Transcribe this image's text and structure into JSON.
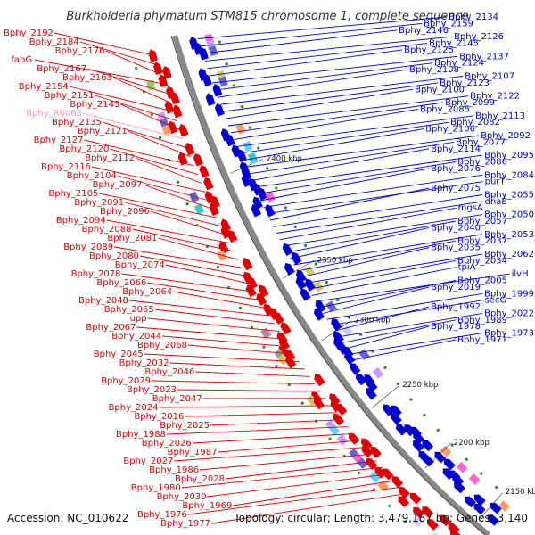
{
  "title": "Burkholderia phymatum STM815 chromosome 1, complete sequence",
  "footer": {
    "accession": "Accession: NC_010622",
    "summary": "Topology: circular; Length: 3,479,187 bp; Genes: 3,140"
  },
  "colors": {
    "forward": "#dd0000",
    "reverse": "#0000cc",
    "rna": "#ff99cc",
    "backbone": "#888888",
    "tick": "#228b22"
  },
  "kbp_marks": [
    "2400 kbp",
    "2350 kbp",
    "2300 kbp",
    "2250 kbp",
    "2200 kbp",
    "2150 kbp"
  ],
  "left_labels": [
    {
      "text": "Bphy_2192",
      "type": "forward"
    },
    {
      "text": "Bphy_2184",
      "type": "forward"
    },
    {
      "text": "Bphy_2176",
      "type": "forward"
    },
    {
      "text": "fabG",
      "type": "forward"
    },
    {
      "text": "Bphy_2167",
      "type": "forward"
    },
    {
      "text": "Bphy_2163",
      "type": "forward"
    },
    {
      "text": "Bphy_2154",
      "type": "forward"
    },
    {
      "text": "Bphy_2151",
      "type": "forward"
    },
    {
      "text": "Bphy_2143",
      "type": "forward"
    },
    {
      "text": "Bphy_R0063",
      "type": "rna"
    },
    {
      "text": "Bphy_2135",
      "type": "forward"
    },
    {
      "text": "Bphy_2121",
      "type": "forward"
    },
    {
      "text": "Bphy_2127",
      "type": "forward"
    },
    {
      "text": "Bphy_2120",
      "type": "forward"
    },
    {
      "text": "Bphy_2112",
      "type": "forward"
    },
    {
      "text": "Bphy_2116",
      "type": "forward"
    },
    {
      "text": "Bphy_2104",
      "type": "forward"
    },
    {
      "text": "Bphy_2097",
      "type": "forward"
    },
    {
      "text": "Bphy_2105",
      "type": "forward"
    },
    {
      "text": "Bphy_2091",
      "type": "forward"
    },
    {
      "text": "Bphy_2096",
      "type": "forward"
    },
    {
      "text": "Bphy_2094",
      "type": "forward"
    },
    {
      "text": "Bphy_2088",
      "type": "forward"
    },
    {
      "text": "Bphy_2081",
      "type": "forward"
    },
    {
      "text": "Bphy_2089",
      "type": "forward"
    },
    {
      "text": "Bphy_2080",
      "type": "forward"
    },
    {
      "text": "Bphy_2074",
      "type": "forward"
    },
    {
      "text": "Bphy_2078",
      "type": "forward"
    },
    {
      "text": "Bphy_2066",
      "type": "forward"
    },
    {
      "text": "Bphy_2064",
      "type": "forward"
    },
    {
      "text": "Bphy_2048",
      "type": "forward"
    },
    {
      "text": "Bphy_2065",
      "type": "forward"
    },
    {
      "text": "upp",
      "type": "forward"
    },
    {
      "text": "Bphy_2067",
      "type": "forward"
    },
    {
      "text": "Bphy_2044",
      "type": "forward"
    },
    {
      "text": "Bphy_2068",
      "type": "forward"
    },
    {
      "text": "Bphy_2045",
      "type": "forward"
    },
    {
      "text": "Bphy_2032",
      "type": "forward"
    },
    {
      "text": "Bphy_2046",
      "type": "forward"
    },
    {
      "text": "Bphy_2029",
      "type": "forward"
    },
    {
      "text": "Bphy_2023",
      "type": "forward"
    },
    {
      "text": "Bphy_2047",
      "type": "forward"
    },
    {
      "text": "Bphy_2024",
      "type": "forward"
    },
    {
      "text": "Bphy_2016",
      "type": "forward"
    },
    {
      "text": "Bphy_2025",
      "type": "forward"
    },
    {
      "text": "Bphy_1988",
      "type": "forward"
    },
    {
      "text": "Bphy_2026",
      "type": "forward"
    },
    {
      "text": "Bphy_1987",
      "type": "forward"
    },
    {
      "text": "Bphy_2027",
      "type": "forward"
    },
    {
      "text": "Bphy_1986",
      "type": "forward"
    },
    {
      "text": "Bphy_2028",
      "type": "forward"
    },
    {
      "text": "Bphy_1980",
      "type": "forward"
    },
    {
      "text": "Bphy_2030",
      "type": "forward"
    },
    {
      "text": "Bphy_1969",
      "type": "forward"
    },
    {
      "text": "Bphy_1976",
      "type": "forward"
    },
    {
      "text": "Bphy_1977",
      "type": "forward"
    }
  ],
  "right_labels": [
    {
      "text": "Bphy_2134",
      "type": "reverse"
    },
    {
      "text": "Bphy_2159",
      "type": "reverse"
    },
    {
      "text": "Bphy_2146",
      "type": "reverse"
    },
    {
      "text": "Bphy_2126",
      "type": "reverse"
    },
    {
      "text": "Bphy_2145",
      "type": "reverse"
    },
    {
      "text": "Bphy_2125",
      "type": "reverse"
    },
    {
      "text": "Bphy_2137",
      "type": "reverse"
    },
    {
      "text": "Bphy_2124",
      "type": "reverse"
    },
    {
      "text": "Bphy_2108",
      "type": "reverse"
    },
    {
      "text": "Bphy_2107",
      "type": "reverse"
    },
    {
      "text": "Bphy_2123",
      "type": "reverse"
    },
    {
      "text": "Bphy_2100",
      "type": "reverse"
    },
    {
      "text": "Bphy_2122",
      "type": "reverse"
    },
    {
      "text": "Bphy_2099",
      "type": "reverse"
    },
    {
      "text": "Bphy_2085",
      "type": "reverse"
    },
    {
      "text": "Bphy_2113",
      "type": "reverse"
    },
    {
      "text": "Bphy_2082",
      "type": "reverse"
    },
    {
      "text": "Bphy_2106",
      "type": "reverse"
    },
    {
      "text": "Bphy_2092",
      "type": "reverse"
    },
    {
      "text": "Bphy_2077",
      "type": "reverse"
    },
    {
      "text": "Bphy_2114",
      "type": "reverse"
    },
    {
      "text": "Bphy_2095",
      "type": "reverse"
    },
    {
      "text": "Bphy_2086",
      "type": "reverse"
    },
    {
      "text": "Bphy_2076",
      "type": "reverse"
    },
    {
      "text": "Bphy_2084",
      "type": "reverse"
    },
    {
      "text": "purT",
      "type": "reverse"
    },
    {
      "text": "Bphy_2075",
      "type": "reverse"
    },
    {
      "text": "Bphy_2055",
      "type": "reverse"
    },
    {
      "text": "dnaE",
      "type": "reverse"
    },
    {
      "text": "mgsA",
      "type": "reverse"
    },
    {
      "text": "Bphy_2050",
      "type": "reverse"
    },
    {
      "text": "Bphy_2057",
      "type": "reverse"
    },
    {
      "text": "Bphy_2040",
      "type": "reverse"
    },
    {
      "text": "Bphy_2053",
      "type": "reverse"
    },
    {
      "text": "Bphy_2037",
      "type": "reverse"
    },
    {
      "text": "Bphy_2035",
      "type": "reverse"
    },
    {
      "text": "Bphy_2062",
      "type": "reverse"
    },
    {
      "text": "Bphy_2034",
      "type": "reverse"
    },
    {
      "text": "tpiA",
      "type": "reverse"
    },
    {
      "text": "ilvH",
      "type": "reverse"
    },
    {
      "text": "Bphy_2005",
      "type": "reverse"
    },
    {
      "text": "Bphy_2019",
      "type": "reverse"
    },
    {
      "text": "Bphy_1999",
      "type": "reverse"
    },
    {
      "text": "secG",
      "type": "reverse"
    },
    {
      "text": "Bphy_1992",
      "type": "reverse"
    },
    {
      "text": "Bphy_2022",
      "type": "reverse"
    },
    {
      "text": "Bphy_1989",
      "type": "reverse"
    },
    {
      "text": "Bphy_1978",
      "type": "reverse"
    },
    {
      "text": "Bphy_1973",
      "type": "reverse"
    },
    {
      "text": "Bphy_1971",
      "type": "reverse"
    }
  ]
}
